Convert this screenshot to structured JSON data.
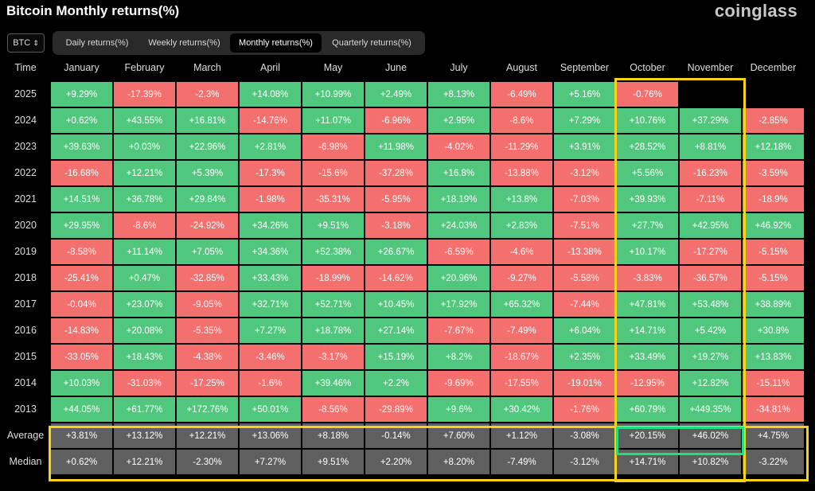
{
  "header": {
    "title": "Bitcoin Monthly returns(%)",
    "brand": "coinglass"
  },
  "asset_select": {
    "value": "BTC",
    "icon": "chevron-updown-icon"
  },
  "tabs": [
    {
      "label": "Daily returns(%)",
      "active": false
    },
    {
      "label": "Weekly returns(%)",
      "active": false
    },
    {
      "label": "Monthly returns(%)",
      "active": true
    },
    {
      "label": "Quarterly returns(%)",
      "active": false
    }
  ],
  "table": {
    "corner": "Time",
    "months": [
      "January",
      "February",
      "March",
      "April",
      "May",
      "June",
      "July",
      "August",
      "September",
      "October",
      "November",
      "December"
    ],
    "rows": [
      {
        "label": "2025",
        "values": [
          "+9.29%",
          "-17.39%",
          "-2.3%",
          "+14.08%",
          "+10.99%",
          "+2.49%",
          "+8.13%",
          "-6.49%",
          "+5.16%",
          "-0.76%",
          "",
          ""
        ]
      },
      {
        "label": "2024",
        "values": [
          "+0.62%",
          "+43.55%",
          "+16.81%",
          "-14.76%",
          "+11.07%",
          "-6.96%",
          "+2.95%",
          "-8.6%",
          "+7.29%",
          "+10.76%",
          "+37.29%",
          "-2.85%"
        ]
      },
      {
        "label": "2023",
        "values": [
          "+39.63%",
          "+0.03%",
          "+22.96%",
          "+2.81%",
          "-6.98%",
          "+11.98%",
          "-4.02%",
          "-11.29%",
          "+3.91%",
          "+28.52%",
          "+8.81%",
          "+12.18%"
        ]
      },
      {
        "label": "2022",
        "values": [
          "-16.68%",
          "+12.21%",
          "+5.39%",
          "-17.3%",
          "-15.6%",
          "-37.28%",
          "+16.8%",
          "-13.88%",
          "-3.12%",
          "+5.56%",
          "-16.23%",
          "-3.59%"
        ]
      },
      {
        "label": "2021",
        "values": [
          "+14.51%",
          "+36.78%",
          "+29.84%",
          "-1.98%",
          "-35.31%",
          "-5.95%",
          "+18.19%",
          "+13.8%",
          "-7.03%",
          "+39.93%",
          "-7.11%",
          "-18.9%"
        ]
      },
      {
        "label": "2020",
        "values": [
          "+29.95%",
          "-8.6%",
          "-24.92%",
          "+34.26%",
          "+9.51%",
          "-3.18%",
          "+24.03%",
          "+2.83%",
          "-7.51%",
          "+27.7%",
          "+42.95%",
          "+46.92%"
        ]
      },
      {
        "label": "2019",
        "values": [
          "-8.58%",
          "+11.14%",
          "+7.05%",
          "+34.36%",
          "+52.38%",
          "+26.67%",
          "-6.59%",
          "-4.6%",
          "-13.38%",
          "+10.17%",
          "-17.27%",
          "-5.15%"
        ]
      },
      {
        "label": "2018",
        "values": [
          "-25.41%",
          "+0.47%",
          "-32.85%",
          "+33.43%",
          "-18.99%",
          "-14.62%",
          "+20.96%",
          "-9.27%",
          "-5.58%",
          "-3.83%",
          "-36.57%",
          "-5.15%"
        ]
      },
      {
        "label": "2017",
        "values": [
          "-0.04%",
          "+23.07%",
          "-9.05%",
          "+32.71%",
          "+52.71%",
          "+10.45%",
          "+17.92%",
          "+65.32%",
          "-7.44%",
          "+47.81%",
          "+53.48%",
          "+38.89%"
        ]
      },
      {
        "label": "2016",
        "values": [
          "-14.83%",
          "+20.08%",
          "-5.35%",
          "+7.27%",
          "+18.78%",
          "+27.14%",
          "-7.67%",
          "-7.49%",
          "+6.04%",
          "+14.71%",
          "+5.42%",
          "+30.8%"
        ]
      },
      {
        "label": "2015",
        "values": [
          "-33.05%",
          "+18.43%",
          "-4.38%",
          "-3.46%",
          "-3.17%",
          "+15.19%",
          "+8.2%",
          "-18.67%",
          "+2.35%",
          "+33.49%",
          "+19.27%",
          "+13.83%"
        ]
      },
      {
        "label": "2014",
        "values": [
          "+10.03%",
          "-31.03%",
          "-17.25%",
          "-1.6%",
          "+39.46%",
          "+2.2%",
          "-9.69%",
          "-17.55%",
          "-19.01%",
          "-12.95%",
          "+12.82%",
          "-15.11%"
        ]
      },
      {
        "label": "2013",
        "values": [
          "+44.05%",
          "+61.77%",
          "+172.76%",
          "+50.01%",
          "-8.56%",
          "-29.89%",
          "+9.6%",
          "+30.42%",
          "-1.76%",
          "+60.79%",
          "+449.35%",
          "-34.81%"
        ]
      }
    ],
    "summary": [
      {
        "label": "Average",
        "values": [
          "+3.81%",
          "+13.12%",
          "+12.21%",
          "+13.06%",
          "+8.18%",
          "-0.14%",
          "+7.60%",
          "+1.12%",
          "-3.08%",
          "+20.15%",
          "+46.02%",
          "+4.75%"
        ]
      },
      {
        "label": "Median",
        "values": [
          "+0.62%",
          "+12.21%",
          "-2.30%",
          "+7.27%",
          "+9.51%",
          "+2.20%",
          "+8.20%",
          "-7.49%",
          "-3.12%",
          "+14.71%",
          "+10.82%",
          "-3.22%"
        ]
      }
    ]
  },
  "colors": {
    "positive": "#51c77d",
    "negative": "#f4706e",
    "summary": "#5f5f5f",
    "highlight": "#f7d21a",
    "highlight_green": "#1fe07c"
  }
}
